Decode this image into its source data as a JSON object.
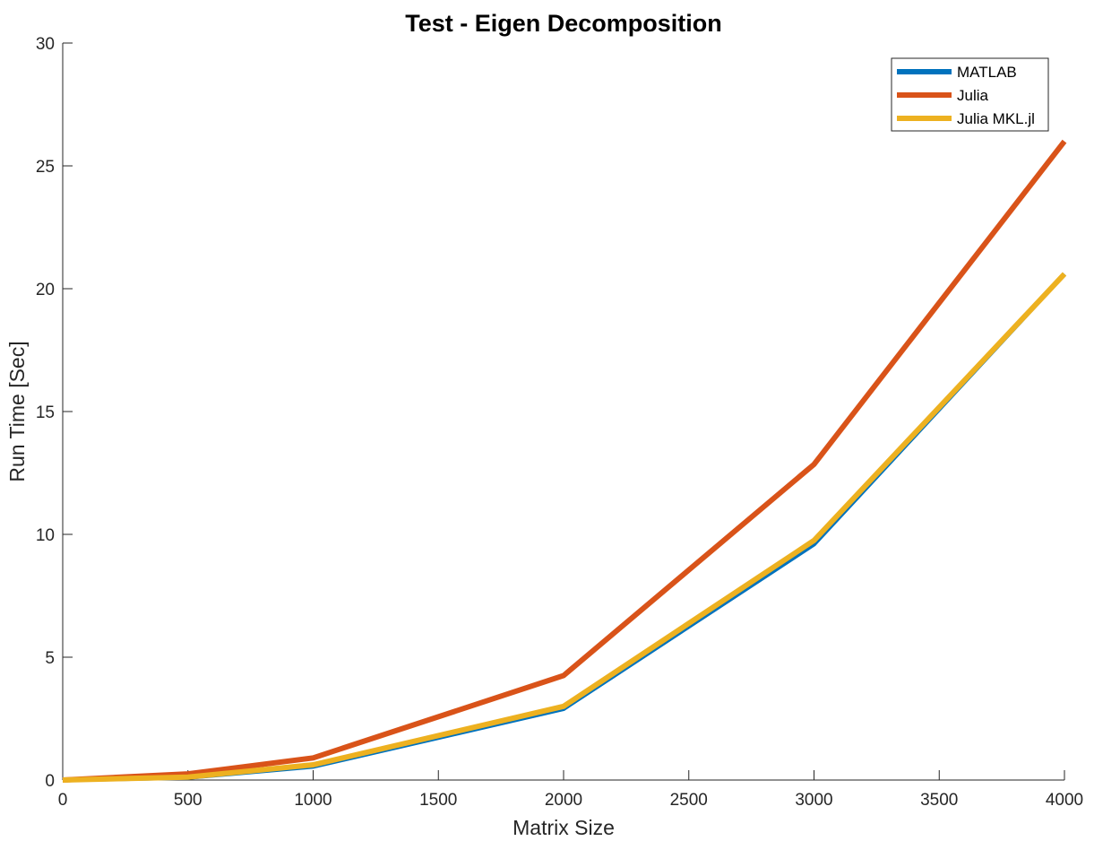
{
  "chart_data": {
    "type": "line",
    "title": "Test - Eigen Decomposition",
    "xlabel": "Matrix Size",
    "ylabel": "Run Time  [Sec]",
    "xlim": [
      0,
      4000
    ],
    "ylim": [
      0,
      30
    ],
    "xticks": [
      0,
      500,
      1000,
      1500,
      2000,
      2500,
      3000,
      3500,
      4000
    ],
    "yticks": [
      0,
      5,
      10,
      15,
      20,
      25,
      30
    ],
    "grid": false,
    "legend_position": "top-right",
    "x": [
      0,
      500,
      1000,
      2000,
      3000,
      4000
    ],
    "series": [
      {
        "name": "MATLAB",
        "color": "#0072BD",
        "values": [
          0,
          0.1,
          0.55,
          2.9,
          9.6,
          20.6
        ]
      },
      {
        "name": "Julia",
        "color": "#D95319",
        "values": [
          0,
          0.25,
          0.9,
          4.25,
          12.85,
          26.0
        ]
      },
      {
        "name": "Julia MKL.jl",
        "color": "#EDB120",
        "values": [
          0,
          0.12,
          0.62,
          3.0,
          9.75,
          20.6
        ]
      }
    ]
  }
}
